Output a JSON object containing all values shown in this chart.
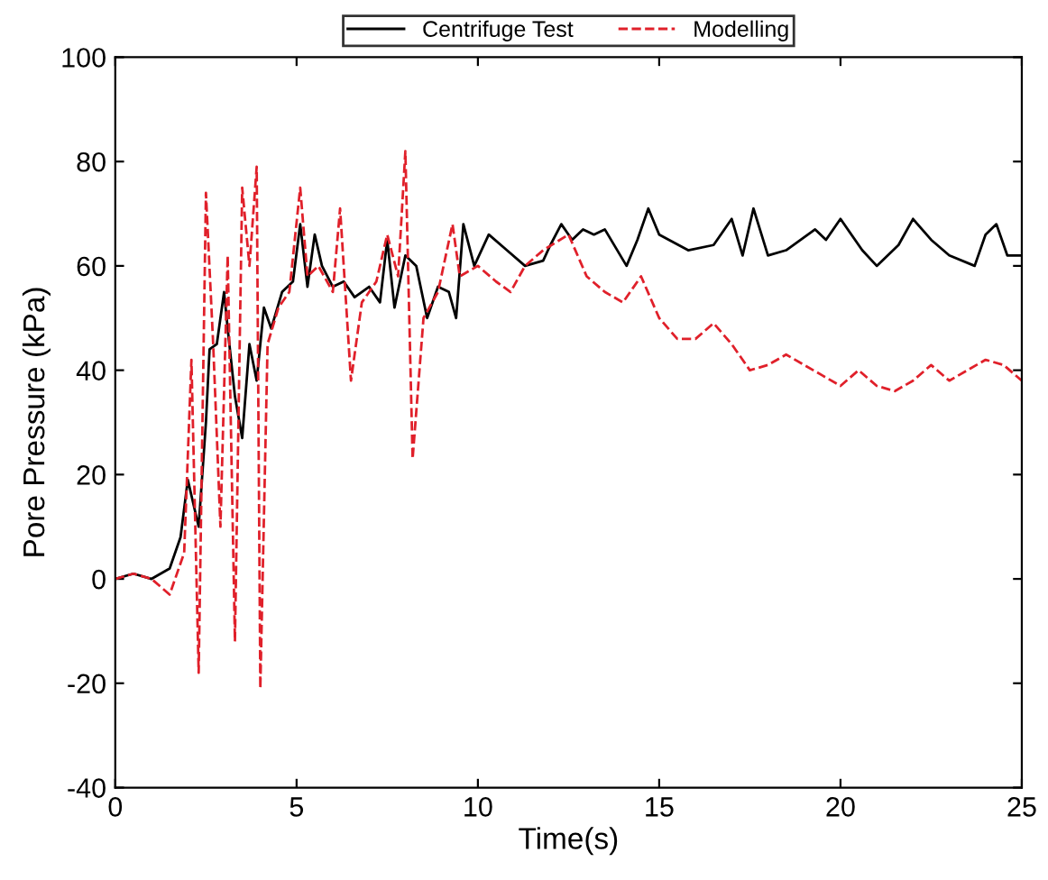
{
  "chart_data": {
    "type": "line",
    "xlabel": "Time(s)",
    "ylabel": "Pore Pressure (kPa)",
    "xlim": [
      0,
      25
    ],
    "xticks": [
      0,
      5,
      10,
      15,
      20,
      25
    ],
    "ylim": [
      -40,
      100
    ],
    "yticks": [
      -40,
      -20,
      0,
      20,
      40,
      60,
      80,
      100
    ],
    "grid": false,
    "legend": "top",
    "marker": "none",
    "series": [
      {
        "name": "Centrifuge Test",
        "color": "#000000",
        "line_style": "solid",
        "x": [
          0,
          0.5,
          1,
          1.5,
          1.8,
          2.0,
          2.3,
          2.5,
          2.6,
          2.8,
          3.0,
          3.1,
          3.3,
          3.5,
          3.7,
          3.9,
          4.1,
          4.3,
          4.6,
          4.9,
          5.1,
          5.3,
          5.5,
          5.7,
          6.0,
          6.3,
          6.6,
          7.0,
          7.3,
          7.5,
          7.7,
          8.0,
          8.3,
          8.6,
          8.9,
          9.2,
          9.4,
          9.6,
          9.9,
          10.3,
          10.8,
          11.3,
          11.8,
          12.0,
          12.3,
          12.6,
          12.9,
          13.2,
          13.5,
          14.1,
          14.4,
          14.7,
          15.0,
          15.8,
          16.5,
          17.0,
          17.3,
          17.6,
          18.0,
          18.5,
          19.3,
          19.6,
          20.0,
          20.6,
          21.0,
          21.6,
          22.0,
          22.5,
          23.0,
          23.7,
          24.0,
          24.3,
          24.6,
          25
        ],
        "values": [
          0,
          1,
          0,
          2,
          8,
          19,
          10,
          30,
          44,
          45,
          55,
          48,
          35,
          27,
          45,
          38,
          52,
          48,
          55,
          57,
          68,
          56,
          66,
          60,
          56,
          57,
          54,
          56,
          53,
          65,
          52,
          62,
          60,
          50,
          56,
          55,
          50,
          68,
          60,
          66,
          63,
          60,
          61,
          64,
          68,
          65,
          67,
          66,
          67,
          60,
          65,
          71,
          66,
          63,
          64,
          69,
          62,
          71,
          62,
          63,
          67,
          65,
          69,
          63,
          60,
          64,
          69,
          65,
          62,
          60,
          66,
          68,
          62,
          62
        ]
      },
      {
        "name": "Modelling",
        "color": "#e0202a",
        "line_style": "dashed",
        "x": [
          0,
          0.5,
          1,
          1.5,
          1.9,
          2.1,
          2.3,
          2.5,
          2.7,
          2.9,
          3.1,
          3.3,
          3.5,
          3.7,
          3.9,
          4.0,
          4.2,
          4.5,
          4.8,
          5.1,
          5.3,
          5.6,
          6.0,
          6.2,
          6.5,
          6.8,
          7.2,
          7.5,
          7.8,
          8.0,
          8.2,
          8.5,
          8.9,
          9.3,
          9.5,
          10.0,
          10.5,
          10.9,
          11.3,
          11.8,
          12.5,
          13.0,
          13.5,
          14.0,
          14.5,
          15.0,
          15.5,
          16.0,
          16.5,
          17.0,
          17.5,
          18.0,
          18.5,
          19.0,
          19.5,
          20.0,
          20.5,
          21.0,
          21.5,
          22.0,
          22.5,
          23.0,
          23.5,
          24.0,
          24.5,
          25
        ],
        "values": [
          0,
          1,
          0,
          -3,
          5,
          42,
          -18,
          74,
          45,
          10,
          62,
          -12,
          75,
          60,
          79,
          -21,
          45,
          52,
          55,
          75,
          58,
          60,
          55,
          71,
          38,
          53,
          57,
          66,
          58,
          82,
          23,
          50,
          55,
          68,
          58,
          60,
          57,
          55,
          60,
          63,
          66,
          58,
          55,
          53,
          58,
          50,
          46,
          46,
          49,
          45,
          40,
          41,
          43,
          41,
          39,
          37,
          40,
          37,
          36,
          38,
          41,
          38,
          40,
          42,
          41,
          38
        ]
      }
    ]
  }
}
